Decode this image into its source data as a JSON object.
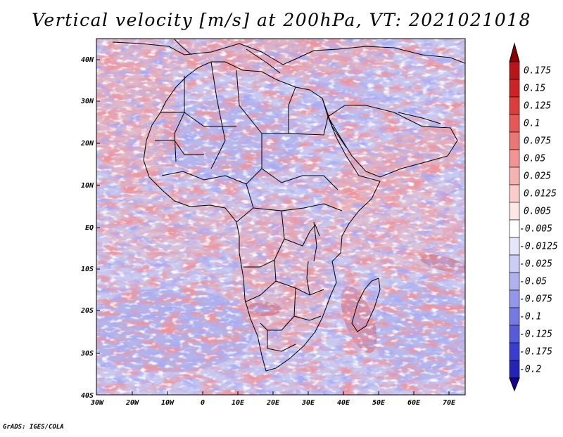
{
  "title": "Vertical velocity [m/s] at 200hPa, VT: 2021021018",
  "credit": "GrADS: IGES/COLA",
  "map": {
    "lat_labels": [
      "40N",
      "30N",
      "20N",
      "10N",
      "EQ",
      "10S",
      "20S",
      "30S",
      "40S"
    ],
    "lon_labels": [
      "30W",
      "20W",
      "10W",
      "0",
      "10E",
      "20E",
      "30E",
      "40E",
      "50E",
      "60E",
      "70E"
    ],
    "lat_range": [
      -40,
      45
    ],
    "lon_range": [
      -30,
      75
    ]
  },
  "colorbar": {
    "top_color": "#8b0000",
    "bottom_color": "#1a0090",
    "levels": [
      {
        "label": "0.175",
        "color": "#b8141a"
      },
      {
        "label": "0.15",
        "color": "#cc2424"
      },
      {
        "label": "0.125",
        "color": "#dc3c3c"
      },
      {
        "label": "0.1",
        "color": "#e45858"
      },
      {
        "label": "0.075",
        "color": "#ec7676"
      },
      {
        "label": "0.05",
        "color": "#f29494"
      },
      {
        "label": "0.025",
        "color": "#f6b2b2"
      },
      {
        "label": "0.0125",
        "color": "#facccc"
      },
      {
        "label": "0.005",
        "color": "#fde6e6"
      },
      {
        "label": "-0.005",
        "color": "#ffffff"
      },
      {
        "label": "-0.0125",
        "color": "#e6e6fa"
      },
      {
        "label": "-0.025",
        "color": "#cccdf6"
      },
      {
        "label": "-0.05",
        "color": "#b0b2f0"
      },
      {
        "label": "-0.075",
        "color": "#9396ea"
      },
      {
        "label": "-0.1",
        "color": "#7579e2"
      },
      {
        "label": "-0.125",
        "color": "#565bd8"
      },
      {
        "label": "-0.175",
        "color": "#3a3ecc"
      },
      {
        "label": "-0.2",
        "color": "#2323b4"
      }
    ]
  }
}
